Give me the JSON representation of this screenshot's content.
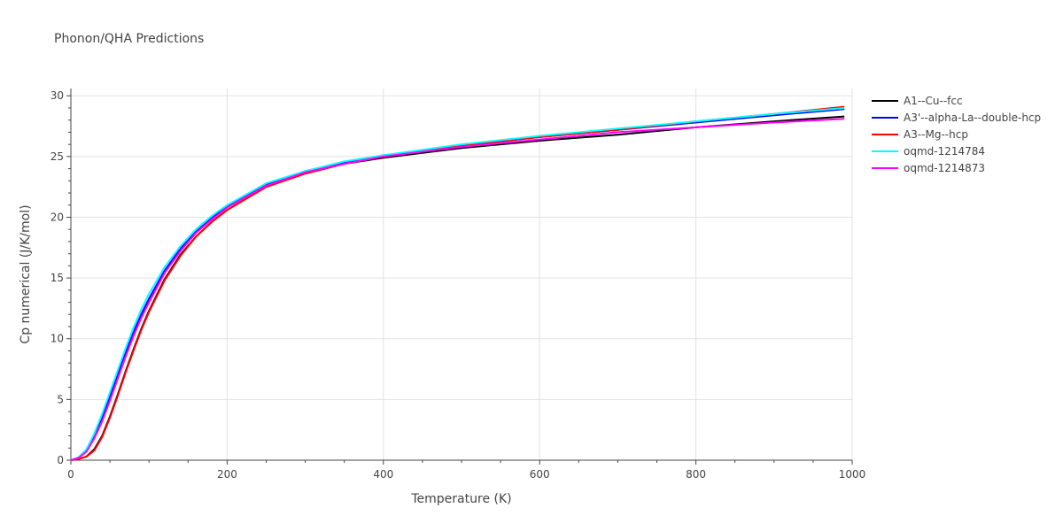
{
  "chart_data": {
    "type": "line",
    "title": "Phonon/QHA Predictions",
    "xlabel": "Temperature (K)",
    "ylabel": "Cp numerical (J/K/mol)",
    "xlim": [
      0,
      1000
    ],
    "ylim": [
      0,
      30.6
    ],
    "xticks": [
      0,
      200,
      400,
      600,
      800,
      1000
    ],
    "yticks": [
      0,
      5,
      10,
      15,
      20,
      25,
      30
    ],
    "grid": true,
    "legend_position": "right",
    "x": [
      0,
      10,
      20,
      30,
      40,
      50,
      60,
      70,
      80,
      90,
      100,
      120,
      140,
      160,
      180,
      200,
      250,
      300,
      350,
      400,
      500,
      600,
      700,
      800,
      900,
      990
    ],
    "series": [
      {
        "name": "A1--Cu--fcc",
        "color": "#000000",
        "values": [
          0,
          0.1,
          0.3,
          0.9,
          2.0,
          3.6,
          5.4,
          7.3,
          9.1,
          10.8,
          12.3,
          14.9,
          16.9,
          18.4,
          19.6,
          20.6,
          22.5,
          23.6,
          24.4,
          24.9,
          25.7,
          26.3,
          26.8,
          27.4,
          27.9,
          28.3
        ]
      },
      {
        "name": "A3'--alpha-La--double-hcp",
        "color": "#0000ff",
        "values": [
          0,
          0.2,
          0.8,
          2.0,
          3.5,
          5.2,
          7.0,
          8.8,
          10.5,
          12.0,
          13.3,
          15.6,
          17.4,
          18.8,
          19.9,
          20.9,
          22.7,
          23.8,
          24.5,
          25.1,
          25.9,
          26.6,
          27.2,
          27.8,
          28.4,
          28.9
        ]
      },
      {
        "name": "A3--Mg--hcp",
        "color": "#ff0000",
        "values": [
          0,
          0.1,
          0.3,
          0.8,
          1.9,
          3.5,
          5.3,
          7.2,
          9.0,
          10.7,
          12.2,
          14.8,
          16.8,
          18.4,
          19.6,
          20.6,
          22.5,
          23.6,
          24.4,
          25.0,
          25.9,
          26.6,
          27.2,
          27.9,
          28.5,
          29.1
        ]
      },
      {
        "name": "oqmd-1214784",
        "color": "#00ffff",
        "values": [
          0,
          0.25,
          0.9,
          2.2,
          3.8,
          5.6,
          7.4,
          9.2,
          10.9,
          12.4,
          13.7,
          15.9,
          17.6,
          19.0,
          20.1,
          21.0,
          22.8,
          23.8,
          24.6,
          25.1,
          26.0,
          26.7,
          27.3,
          27.9,
          28.5,
          29.0
        ]
      },
      {
        "name": "oqmd-1214873",
        "color": "#ff00ff",
        "values": [
          0,
          0.2,
          0.7,
          1.8,
          3.2,
          4.9,
          6.7,
          8.5,
          10.2,
          11.7,
          13.0,
          15.4,
          17.2,
          18.7,
          19.8,
          20.8,
          22.6,
          23.7,
          24.4,
          25.0,
          25.8,
          26.4,
          27.0,
          27.4,
          27.8,
          28.1
        ]
      }
    ]
  }
}
